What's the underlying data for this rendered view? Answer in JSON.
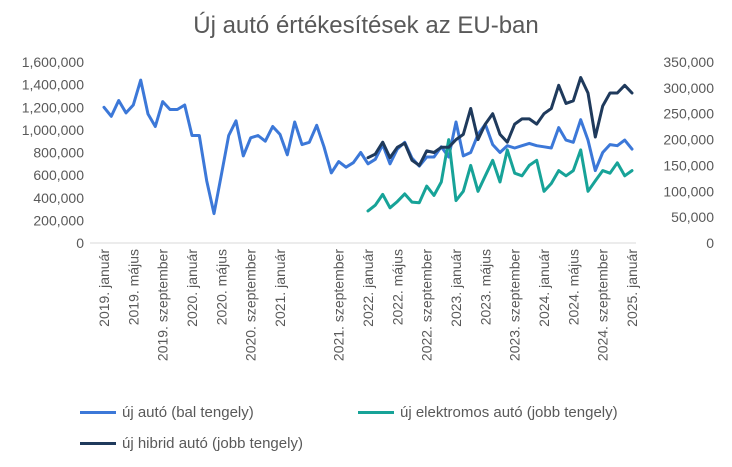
{
  "chart_data": {
    "type": "line",
    "title": "Új autó értékesítések az EU-ban",
    "left_axis": {
      "ylim": [
        0,
        1600000
      ],
      "ticks": [
        "0",
        "200,000",
        "400,000",
        "600,000",
        "800,000",
        "1,000,000",
        "1,200,000",
        "1,400,000",
        "1,600,000"
      ]
    },
    "right_axis": {
      "ylim": [
        0,
        350000
      ],
      "ticks": [
        "0",
        "50,000",
        "100,000",
        "150,000",
        "200,000",
        "250,000",
        "300,000",
        "350,000"
      ]
    },
    "x_tick_labels": [
      "2019. január",
      "2019. május",
      "2019. szeptember",
      "2020. január",
      "2020. május",
      "2020. szeptember",
      "2021. január",
      "2021. szeptember",
      "2022. január",
      "2022. május",
      "2022. szeptember",
      "2023. január",
      "2023. május",
      "2023. szeptember",
      "2024. január",
      "2024. május",
      "2024. szeptember",
      "2025. január"
    ],
    "x_tick_index": [
      0,
      4,
      8,
      12,
      16,
      20,
      24,
      32,
      36,
      40,
      44,
      48,
      52,
      56,
      60,
      64,
      68,
      72
    ],
    "n_points": 73,
    "grid": false,
    "legend_position": "bottom",
    "series": [
      {
        "name": "új autó (bal tengely)",
        "axis": "left",
        "color": "#3c78d8",
        "start_index": 0,
        "values": [
          1200000,
          1120000,
          1260000,
          1150000,
          1220000,
          1440000,
          1140000,
          1030000,
          1250000,
          1180000,
          1180000,
          1220000,
          950000,
          950000,
          550000,
          260000,
          600000,
          950000,
          1080000,
          770000,
          930000,
          950000,
          900000,
          1030000,
          960000,
          780000,
          1070000,
          870000,
          890000,
          1040000,
          850000,
          620000,
          720000,
          670000,
          710000,
          800000,
          700000,
          740000,
          870000,
          700000,
          830000,
          890000,
          750000,
          680000,
          760000,
          760000,
          850000,
          760000,
          1070000,
          770000,
          800000,
          960000,
          1050000,
          870000,
          800000,
          860000,
          840000,
          860000,
          880000,
          860000,
          850000,
          840000,
          1020000,
          910000,
          890000,
          1090000,
          910000,
          640000,
          800000,
          870000,
          860000,
          910000,
          830000
        ]
      },
      {
        "name": "új elektromos autó (jobb tengely)",
        "axis": "right",
        "color": "#17a398",
        "start_index": 36,
        "values": [
          62000,
          73000,
          94000,
          68000,
          80000,
          95000,
          79000,
          78000,
          110000,
          92000,
          118000,
          200000,
          82000,
          100000,
          150000,
          100000,
          130000,
          160000,
          118000,
          180000,
          135000,
          130000,
          150000,
          160000,
          100000,
          115000,
          140000,
          130000,
          140000,
          180000,
          100000,
          120000,
          140000,
          135000,
          155000,
          130000,
          140000
        ]
      },
      {
        "name": "új hibrid autó (jobb tengely)",
        "axis": "right",
        "color": "#1f3a5c",
        "start_index": 36,
        "values": [
          165000,
          172000,
          195000,
          165000,
          185000,
          193000,
          160000,
          150000,
          178000,
          175000,
          185000,
          185000,
          200000,
          210000,
          260000,
          200000,
          230000,
          250000,
          210000,
          195000,
          230000,
          240000,
          240000,
          230000,
          250000,
          260000,
          305000,
          270000,
          275000,
          320000,
          290000,
          205000,
          265000,
          290000,
          290000,
          305000,
          290000
        ]
      }
    ]
  }
}
